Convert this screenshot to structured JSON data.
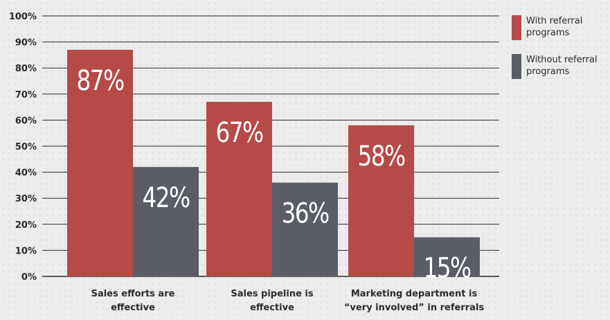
{
  "chart_data": {
    "type": "bar",
    "categories": [
      [
        "Sales efforts are",
        "effective"
      ],
      [
        "Sales pipeline is",
        "effective"
      ],
      [
        "Marketing department is",
        "“very involved” in referrals"
      ]
    ],
    "series": [
      {
        "name": "With referral programs",
        "values": [
          87,
          67,
          58
        ],
        "labels": [
          "87%",
          "67%",
          "58%"
        ],
        "color": "#b54a47"
      },
      {
        "name": "Without referral programs",
        "values": [
          42,
          36,
          15
        ],
        "labels": [
          "42%",
          "36%",
          "15%"
        ],
        "color": "#5a5d66"
      }
    ],
    "y_ticks": [
      "0%",
      "10%",
      "20%",
      "30%",
      "40%",
      "50%",
      "60%",
      "70%",
      "80%",
      "90%",
      "100%"
    ],
    "ylim": [
      0,
      100
    ],
    "title": "",
    "xlabel": "",
    "ylabel": "",
    "grid": true,
    "legend_position": "right"
  },
  "colors": {
    "gridline": "#2b2b2b",
    "axis_text": "#2b2b2b",
    "value_label": "#ffffff",
    "background": "#ececec"
  }
}
